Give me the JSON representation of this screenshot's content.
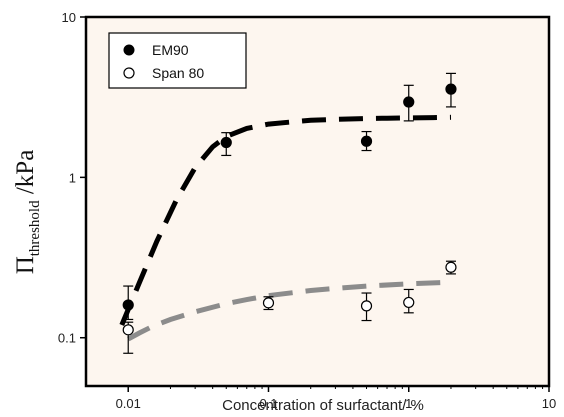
{
  "chart_data": {
    "type": "scatter",
    "xscale": "log",
    "yscale": "log",
    "xlim": [
      0.005,
      10
    ],
    "ylim": [
      0.05,
      10
    ],
    "xlabel": "Concentration of surfactant/ %",
    "ylabel_main": "Π",
    "ylabel_sub": "threshold",
    "ylabel_unit": " /kPa",
    "x_ticks": [
      {
        "value": 0.01,
        "label": "0.01"
      },
      {
        "value": 0.1,
        "label": "0.1"
      },
      {
        "value": 1,
        "label": "1"
      },
      {
        "value": 10,
        "label": "10"
      }
    ],
    "y_ticks": [
      {
        "value": 0.1,
        "label": "0.1"
      },
      {
        "value": 1,
        "label": "1"
      },
      {
        "value": 10,
        "label": "10"
      }
    ],
    "background": "#fdf6ef",
    "series": [
      {
        "name": "EM90",
        "marker": "filled-circle",
        "color": "#000000",
        "points": [
          {
            "x": 0.01,
            "y": 0.16,
            "err_low": 0.13,
            "err_high": 0.21
          },
          {
            "x": 0.05,
            "y": 1.65,
            "err_low": 1.37,
            "err_high": 1.9
          },
          {
            "x": 0.5,
            "y": 1.68,
            "err_low": 1.47,
            "err_high": 1.93
          },
          {
            "x": 1,
            "y": 2.95,
            "err_low": 2.25,
            "err_high": 3.75
          },
          {
            "x": 2,
            "y": 3.55,
            "err_low": 2.75,
            "err_high": 4.45
          }
        ]
      },
      {
        "name": "Span 80",
        "marker": "open-circle",
        "color": "#000000",
        "points": [
          {
            "x": 0.01,
            "y": 0.112,
            "err_low": 0.08,
            "err_high": 0.125
          },
          {
            "x": 0.1,
            "y": 0.165,
            "err_low": 0.15,
            "err_high": 0.18
          },
          {
            "x": 0.5,
            "y": 0.158,
            "err_low": 0.128,
            "err_high": 0.19
          },
          {
            "x": 1,
            "y": 0.166,
            "err_low": 0.143,
            "err_high": 0.2
          },
          {
            "x": 2,
            "y": 0.275,
            "err_low": 0.25,
            "err_high": 0.3
          }
        ]
      }
    ],
    "fits": [
      {
        "color": "#000000",
        "dash": "dashed",
        "x": [
          0.009,
          0.012,
          0.016,
          0.022,
          0.03,
          0.04,
          0.05,
          0.07,
          0.1,
          0.15,
          0.2,
          0.3,
          0.5,
          0.7,
          1,
          1.5,
          2
        ],
        "y": [
          0.12,
          0.22,
          0.4,
          0.72,
          1.15,
          1.55,
          1.8,
          2.02,
          2.15,
          2.22,
          2.27,
          2.3,
          2.33,
          2.34,
          2.35,
          2.36,
          2.37
        ]
      },
      {
        "color": "#8c8c8c",
        "dash": "dashed",
        "x": [
          0.01,
          0.012,
          0.015,
          0.02,
          0.03,
          0.05,
          0.07,
          0.1,
          0.2,
          0.3,
          0.5,
          1,
          2
        ],
        "y": [
          0.098,
          0.107,
          0.118,
          0.13,
          0.145,
          0.163,
          0.173,
          0.183,
          0.197,
          0.203,
          0.21,
          0.217,
          0.222
        ]
      }
    ],
    "legend": {
      "position": "top-left",
      "entries": [
        {
          "label": "EM90",
          "marker": "filled-circle"
        },
        {
          "label": "Span 80",
          "marker": "open-circle"
        }
      ]
    }
  }
}
